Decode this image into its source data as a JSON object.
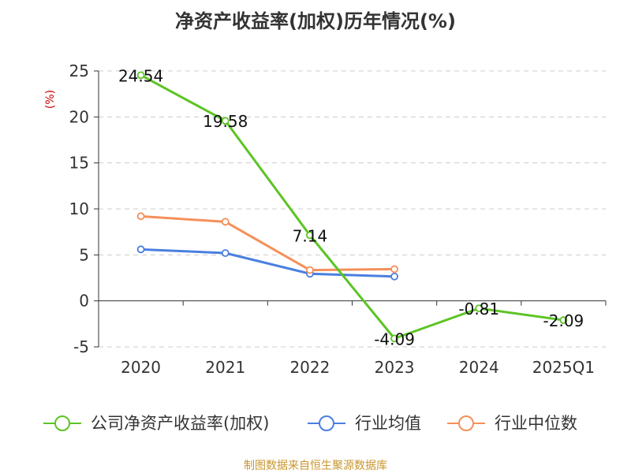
{
  "chart_data": {
    "type": "line",
    "title": "净资产收益率(加权)历年情况(%)",
    "ylabel": "(%)",
    "xlabel": "",
    "categories": [
      "2020",
      "2021",
      "2022",
      "2023",
      "2024",
      "2025Q1"
    ],
    "ylim": [
      -5,
      25
    ],
    "yticks": [
      25,
      20,
      15,
      10,
      5,
      0,
      -5
    ],
    "grid": true,
    "legend_position": "bottom",
    "series": [
      {
        "name": "公司净资产收益率(加权)",
        "color": "#5cc424",
        "values": [
          24.54,
          19.58,
          7.14,
          -4.09,
          -0.81,
          -2.09
        ],
        "labels": [
          "24.54",
          "19.58",
          "7.14",
          "-4.09",
          "-0.81",
          "-2.09"
        ]
      },
      {
        "name": "行业均值",
        "color": "#4a7fe0",
        "values": [
          5.6,
          5.2,
          2.95,
          2.65,
          null,
          null
        ]
      },
      {
        "name": "行业中位数",
        "color": "#f5905a",
        "values": [
          9.2,
          8.6,
          3.35,
          3.45,
          null,
          null
        ]
      }
    ]
  },
  "source": "制图数据来自恒生聚源数据库"
}
